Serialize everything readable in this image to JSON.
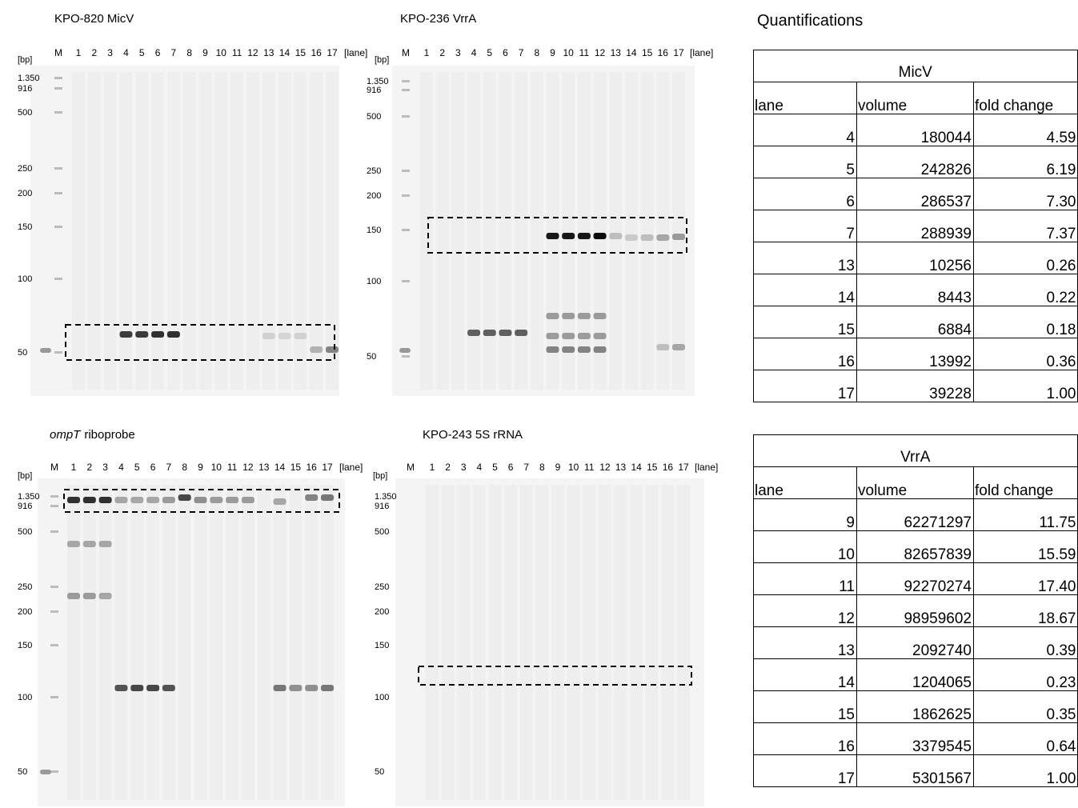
{
  "title": "Quantifications",
  "gels": [
    {
      "title": "KPO-820 MicV",
      "bp_unit": "[bp]",
      "lane_unit": "[lane]",
      "lanes": [
        "M",
        "1",
        "2",
        "3",
        "4",
        "5",
        "6",
        "7",
        "8",
        "9",
        "10",
        "11",
        "12",
        "13",
        "14",
        "15",
        "16",
        "17"
      ],
      "markers": [
        "1.350",
        "916",
        "500",
        "250",
        "200",
        "150",
        "100",
        "50"
      ]
    },
    {
      "title": "KPO-236 VrrA",
      "bp_unit": "[bp]",
      "lane_unit": "[lane]",
      "lanes": [
        "M",
        "1",
        "2",
        "3",
        "4",
        "5",
        "6",
        "7",
        "8",
        "9",
        "10",
        "11",
        "12",
        "13",
        "14",
        "15",
        "16",
        "17"
      ],
      "markers": [
        "1.350",
        "916",
        "500",
        "250",
        "200",
        "150",
        "100",
        "50"
      ]
    },
    {
      "title_italic": "ompT",
      "title": "riboprobe",
      "bp_unit": "[bp]",
      "lane_unit": "[lane]",
      "lanes": [
        "M",
        "1",
        "2",
        "3",
        "4",
        "5",
        "6",
        "7",
        "8",
        "9",
        "10",
        "11",
        "12",
        "13",
        "14",
        "15",
        "16",
        "17"
      ],
      "markers": [
        "1.350",
        "916",
        "500",
        "250",
        "200",
        "150",
        "100",
        "50"
      ]
    },
    {
      "title": "KPO-243 5S rRNA",
      "bp_unit": "[bp]",
      "lane_unit": "[lane]",
      "lanes": [
        "M",
        "1",
        "2",
        "3",
        "4",
        "5",
        "6",
        "7",
        "8",
        "9",
        "10",
        "11",
        "12",
        "13",
        "14",
        "15",
        "16",
        "17"
      ],
      "markers": [
        "1.350",
        "916",
        "500",
        "250",
        "200",
        "150",
        "100",
        "50"
      ]
    }
  ],
  "tables": [
    {
      "title": "MicV",
      "columns": [
        "lane",
        "volume",
        "fold change"
      ],
      "rows": [
        [
          "4",
          "180044",
          "4.59"
        ],
        [
          "5",
          "242826",
          "6.19"
        ],
        [
          "6",
          "286537",
          "7.30"
        ],
        [
          "7",
          "288939",
          "7.37"
        ],
        [
          "13",
          "10256",
          "0.26"
        ],
        [
          "14",
          "8443",
          "0.22"
        ],
        [
          "15",
          "6884",
          "0.18"
        ],
        [
          "16",
          "13992",
          "0.36"
        ],
        [
          "17",
          "39228",
          "1.00"
        ]
      ]
    },
    {
      "title": "VrrA",
      "columns": [
        "lane",
        "volume",
        "fold change"
      ],
      "rows": [
        [
          "9",
          "62271297",
          "11.75"
        ],
        [
          "10",
          "82657839",
          "15.59"
        ],
        [
          "11",
          "92270274",
          "17.40"
        ],
        [
          "12",
          "98959602",
          "18.67"
        ],
        [
          "13",
          "2092740",
          "0.39"
        ],
        [
          "14",
          "1204065",
          "0.23"
        ],
        [
          "15",
          "1862625",
          "0.35"
        ],
        [
          "16",
          "3379545",
          "0.64"
        ],
        [
          "17",
          "5301567",
          "1.00"
        ]
      ]
    }
  ]
}
